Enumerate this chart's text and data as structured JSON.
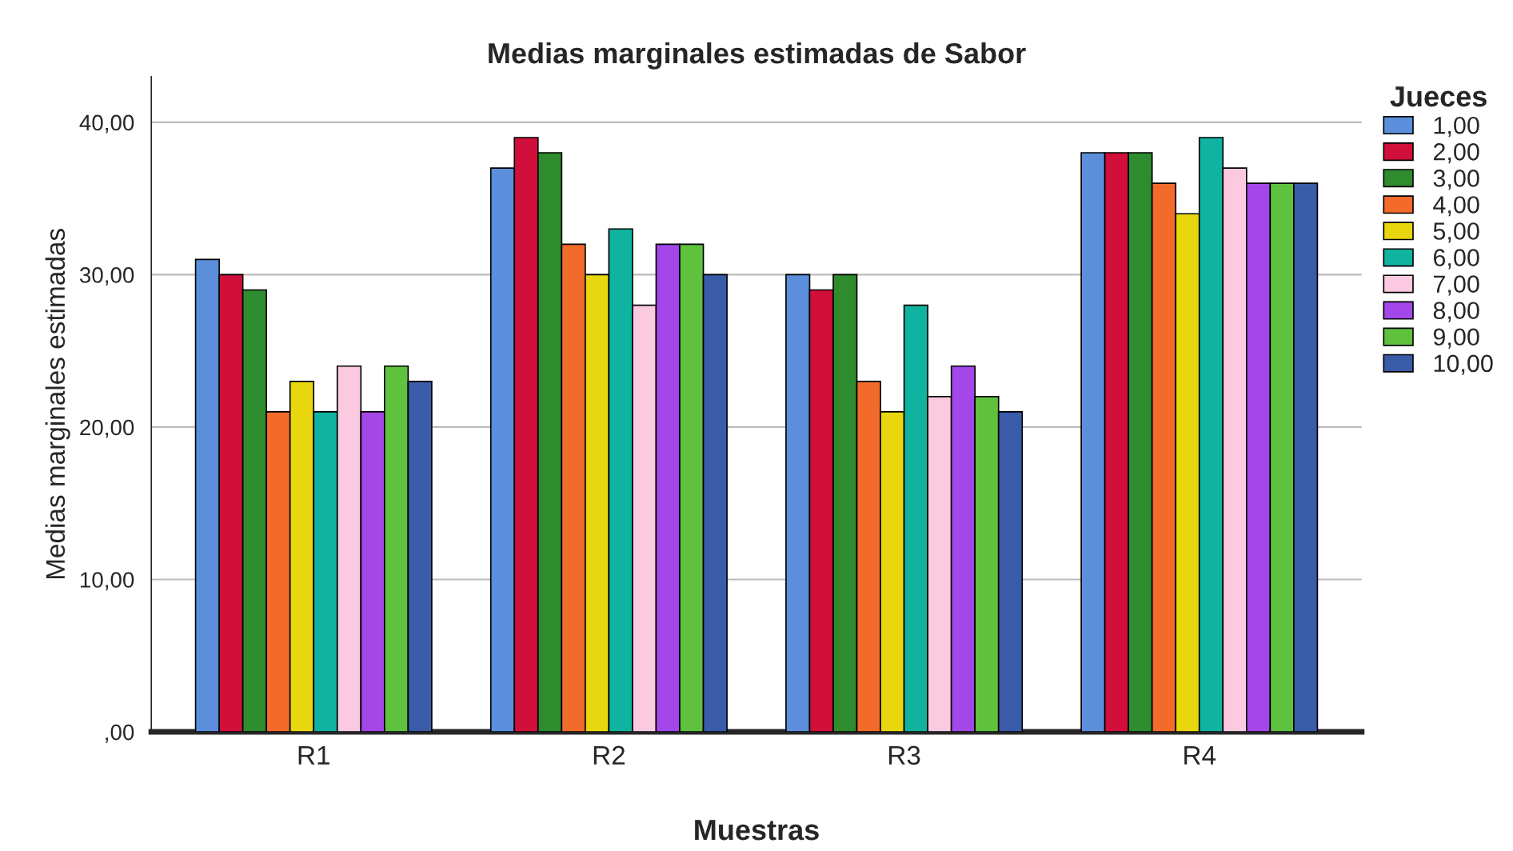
{
  "chart_data": {
    "type": "bar",
    "title": "Medias marginales estimadas de Sabor",
    "xlabel": "Muestras",
    "ylabel": "Medias marginales estimadas",
    "legend_title": "Jueces",
    "categories": [
      "R1",
      "R2",
      "R3",
      "R4"
    ],
    "series": [
      {
        "name": "1,00",
        "color": "#5b8fdc",
        "values": [
          31,
          37,
          30,
          38
        ]
      },
      {
        "name": "2,00",
        "color": "#d0103a",
        "values": [
          30,
          39,
          29,
          38
        ]
      },
      {
        "name": "3,00",
        "color": "#2e8b2e",
        "values": [
          29,
          38,
          30,
          38
        ]
      },
      {
        "name": "4,00",
        "color": "#f26b2a",
        "values": [
          21,
          32,
          23,
          36
        ]
      },
      {
        "name": "5,00",
        "color": "#e8d60e",
        "values": [
          23,
          30,
          21,
          34
        ]
      },
      {
        "name": "6,00",
        "color": "#10b3a0",
        "values": [
          21,
          33,
          28,
          39
        ]
      },
      {
        "name": "7,00",
        "color": "#fbc9e0",
        "values": [
          24,
          28,
          22,
          37
        ]
      },
      {
        "name": "8,00",
        "color": "#a347e8",
        "values": [
          21,
          32,
          24,
          36
        ]
      },
      {
        "name": "9,00",
        "color": "#5fc13e",
        "values": [
          24,
          32,
          22,
          36
        ]
      },
      {
        "name": "10,00",
        "color": "#3a5ba8",
        "values": [
          23,
          30,
          21,
          36
        ]
      }
    ],
    "ylim": [
      0,
      43
    ],
    "yticks": [
      {
        "value": 0,
        "label": ",00"
      },
      {
        "value": 10,
        "label": "10,00"
      },
      {
        "value": 20,
        "label": "20,00"
      },
      {
        "value": 30,
        "label": "30,00"
      },
      {
        "value": 40,
        "label": "40,00"
      }
    ],
    "grid": "y",
    "legend": "top right"
  }
}
